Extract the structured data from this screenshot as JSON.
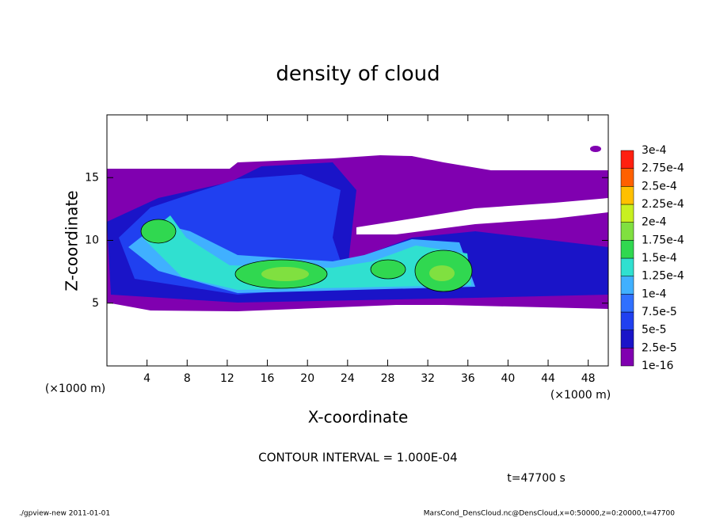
{
  "chart_data": {
    "type": "contour",
    "title": "density of cloud",
    "x_label": "X-coordinate",
    "y_label": "Z-coordinate",
    "x_unit": "(×1000 m)",
    "y_unit": "(×1000 m)",
    "xlim": [
      0,
      50
    ],
    "xticks": [
      4,
      8,
      12,
      16,
      20,
      24,
      28,
      32,
      36,
      40,
      44,
      48
    ],
    "ylim": [
      0,
      20
    ],
    "yticks": [
      5,
      10,
      15
    ],
    "levels": [
      1e-16,
      {
        "value": 2.5e-05,
        "label": "2.5e-5"
      },
      {
        "value": 5e-05,
        "label": "5e-5"
      },
      {
        "value": 7.5e-05,
        "label": "7.5e-5"
      },
      {
        "value": 0.0001,
        "label": "1e-4"
      },
      {
        "value": 0.000125,
        "label": "1.25e-4"
      },
      {
        "value": 0.00015,
        "label": "1.5e-4"
      },
      {
        "value": 0.000175,
        "label": "1.75e-4"
      },
      {
        "value": 0.0002,
        "label": "2e-4"
      },
      {
        "value": 0.000225,
        "label": "2.25e-4"
      },
      {
        "value": 0.00025,
        "label": "2.5e-4"
      },
      {
        "value": 0.000275,
        "label": "2.75e-4"
      },
      {
        "value": 0.0003,
        "label": "3e-4"
      }
    ],
    "colors": [
      "#8000b0",
      "#1a14c8",
      "#2040f0",
      "#3070ff",
      "#40b0ff",
      "#30e0d0",
      "#30d850",
      "#80e040",
      "#c8f020",
      "#ffc000",
      "#ff6000",
      "#ff2010"
    ],
    "contour_interval": "CONTOUR INTERVAL = 1.000E-04",
    "time": "t=47700 s",
    "footer_left": "./gpview-new  2011-01-01",
    "footer_right": "MarsCond_DensCloud.nc@DensCloud,x=0:50000,z=0:20000,t=47700"
  }
}
